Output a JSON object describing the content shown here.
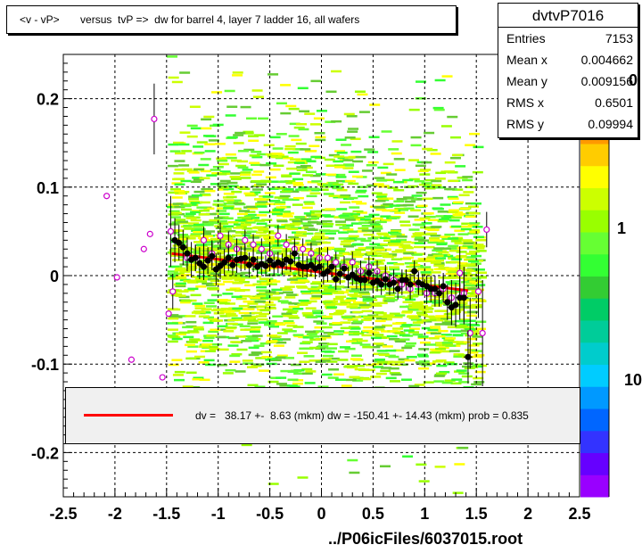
{
  "title": "<v - vP>       versus  tvP =>  dw for barrel 4, layer 7 ladder 16, all wafers",
  "stats": {
    "name": "dvtvP7016",
    "rows": [
      {
        "label": "Entries",
        "value": "7153"
      },
      {
        "label": "Mean x",
        "value": "0.004662"
      },
      {
        "label": "Mean y",
        "value": "0.009156"
      },
      {
        "label": "RMS x",
        "value": "0.6501"
      },
      {
        "label": "RMS y",
        "value": "0.09994"
      }
    ]
  },
  "fit": {
    "text": "dv =   38.17 +-  8.63 (mkm) dw = -150.41 +- 14.43 (mkm) prob = 0.835",
    "line_color": "#ff0000"
  },
  "footer": "../P06icFiles/6037015.root",
  "palette_labels": [
    "0",
    "1",
    "10"
  ],
  "chart_data": {
    "type": "scatter",
    "xlim": [
      -2.5,
      2.5
    ],
    "ylim": [
      -0.25,
      0.25
    ],
    "x_ticks": [
      -2.5,
      -2,
      -1.5,
      -1,
      -0.5,
      0,
      0.5,
      1,
      1.5,
      2,
      2.5
    ],
    "x_tick_labels": [
      "-2.5",
      "-2",
      "-1.5",
      "-1",
      "-0.5",
      "0",
      "0.5",
      "1",
      "1.5",
      "2",
      "2.5"
    ],
    "y_ticks": [
      0.2,
      0.1,
      0,
      -0.1,
      -0.2
    ],
    "y_tick_labels": [
      "0.2",
      "0.1",
      "0",
      "-0.1",
      "-0.2"
    ],
    "grid": true,
    "fit_line": {
      "x": [
        -1.45,
        1.42
      ],
      "y": [
        0.025,
        -0.017
      ],
      "color": "#ff0000"
    },
    "black_points": {
      "x": [
        -1.42,
        -1.38,
        -1.34,
        -1.3,
        -1.26,
        -1.22,
        -1.18,
        -1.14,
        -1.1,
        -1.06,
        -1.02,
        -0.98,
        -0.94,
        -0.9,
        -0.86,
        -0.82,
        -0.78,
        -0.74,
        -0.7,
        -0.66,
        -0.62,
        -0.58,
        -0.54,
        -0.5,
        -0.46,
        -0.42,
        -0.38,
        -0.34,
        -0.3,
        -0.26,
        -0.22,
        -0.18,
        -0.14,
        -0.1,
        -0.06,
        -0.02,
        0.02,
        0.06,
        0.1,
        0.14,
        0.18,
        0.22,
        0.26,
        0.3,
        0.34,
        0.38,
        0.42,
        0.46,
        0.5,
        0.54,
        0.58,
        0.62,
        0.66,
        0.7,
        0.74,
        0.78,
        0.82,
        0.86,
        0.9,
        0.94,
        0.98,
        1.02,
        1.06,
        1.1,
        1.14,
        1.18,
        1.22,
        1.26,
        1.3,
        1.34,
        1.38
      ],
      "y": [
        0.04,
        0.037,
        0.032,
        0.025,
        0.018,
        0.02,
        0.014,
        0.01,
        0.017,
        0.022,
        0.007,
        0.011,
        0.015,
        0.02,
        0.012,
        0.018,
        0.019,
        0.02,
        0.012,
        0.018,
        0.01,
        0.013,
        0.011,
        0.017,
        0.012,
        0.015,
        0.013,
        0.018,
        0.016,
        0.025,
        0.012,
        0.01,
        0.01,
        0.012,
        0.008,
        0.01,
        0.002,
        0.005,
        0.01,
        -0.004,
        0.002,
        0.008,
        -0.002,
        0.001,
        -0.003,
        -0.005,
        -0.005,
        0.003,
        -0.008,
        -0.006,
        -0.01,
        -0.004,
        -0.01,
        -0.008,
        -0.015,
        -0.005,
        -0.005,
        -0.01,
        0.005,
        -0.008,
        -0.01,
        -0.012,
        -0.015,
        -0.015,
        -0.02,
        -0.012,
        -0.03,
        -0.036,
        -0.033,
        -0.025,
        -0.025
      ],
      "err": [
        0.025,
        0.02,
        0.02,
        0.018,
        0.02,
        0.015,
        0.018,
        0.015,
        0.015,
        0.016,
        0.018,
        0.015,
        0.015,
        0.015,
        0.012,
        0.015,
        0.014,
        0.014,
        0.014,
        0.014,
        0.012,
        0.012,
        0.012,
        0.012,
        0.012,
        0.012,
        0.012,
        0.012,
        0.012,
        0.012,
        0.012,
        0.012,
        0.012,
        0.012,
        0.012,
        0.012,
        0.012,
        0.012,
        0.012,
        0.012,
        0.012,
        0.012,
        0.012,
        0.012,
        0.012,
        0.012,
        0.012,
        0.012,
        0.012,
        0.012,
        0.012,
        0.012,
        0.012,
        0.012,
        0.012,
        0.012,
        0.012,
        0.012,
        0.012,
        0.012,
        0.012,
        0.012,
        0.015,
        0.015,
        0.015,
        0.015,
        0.02,
        0.02,
        0.025,
        0.025,
        0.03
      ]
    },
    "black_point_extra": {
      "x": [
        1.42
      ],
      "y": [
        -0.092
      ],
      "err": [
        0.03
      ]
    },
    "open_points": {
      "x": [
        -2.08,
        -1.98,
        -1.84,
        -1.72,
        -1.66,
        -1.62,
        -1.54,
        -1.48,
        -1.44,
        -1.46,
        -1.3,
        -1.22,
        -1.14,
        -1.06,
        -0.98,
        -0.9,
        -0.82,
        -0.74,
        -0.66,
        -0.58,
        -0.5,
        -0.42,
        -0.34,
        -0.26,
        -0.18,
        -0.1,
        -0.02,
        0.06,
        0.14,
        0.22,
        0.3,
        0.38,
        0.46,
        0.54,
        0.62,
        0.7,
        0.78,
        0.86,
        0.94,
        1.02,
        1.1,
        1.18,
        1.26,
        1.34,
        1.38,
        1.44,
        1.52,
        1.56,
        1.6
      ],
      "y": [
        0.09,
        -0.002,
        -0.095,
        0.03,
        0.047,
        0.177,
        -0.115,
        -0.043,
        -0.018,
        0.05,
        0.02,
        0.02,
        0.04,
        0.025,
        0.045,
        0.035,
        0.03,
        0.04,
        0.035,
        0.03,
        0.025,
        0.045,
        0.035,
        0.03,
        0.03,
        0.025,
        0.02,
        0.02,
        0.015,
        0.01,
        0.015,
        0.005,
        0.01,
        0.005,
        0.0,
        -0.005,
        -0.01,
        -0.015,
        -0.01,
        -0.02,
        -0.02,
        -0.015,
        -0.025,
        0.003,
        -0.02,
        -0.065,
        -0.018,
        -0.065,
        0.052
      ],
      "err": [
        0.0,
        0.0,
        0.0,
        0.0,
        0.0,
        0.04,
        0.0,
        0.0,
        0.02,
        0.04,
        0.015,
        0.015,
        0.015,
        0.015,
        0.015,
        0.015,
        0.012,
        0.012,
        0.012,
        0.012,
        0.012,
        0.012,
        0.012,
        0.012,
        0.012,
        0.012,
        0.012,
        0.012,
        0.012,
        0.012,
        0.012,
        0.012,
        0.012,
        0.012,
        0.012,
        0.012,
        0.012,
        0.012,
        0.012,
        0.012,
        0.015,
        0.015,
        0.02,
        0.03,
        0.03,
        0.04,
        0.03,
        0.06,
        0.02
      ]
    }
  }
}
